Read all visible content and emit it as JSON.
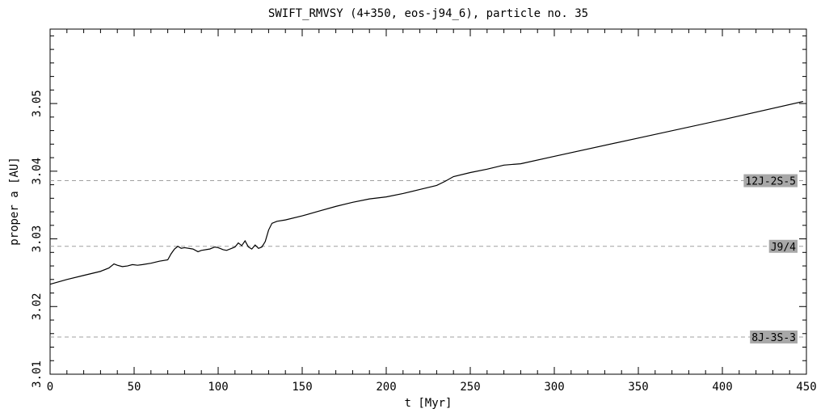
{
  "chart_data": {
    "type": "line",
    "title": "SWIFT_RMVSY (4+350, eos-j94_6), particle no. 35",
    "xlabel": "t [Myr]",
    "ylabel": "proper a [AU]",
    "xlim": [
      0,
      450
    ],
    "ylim": [
      3.01,
      3.061
    ],
    "x_ticks": [
      0,
      50,
      100,
      150,
      200,
      250,
      300,
      350,
      400,
      450
    ],
    "x_tick_labels": [
      "0",
      "50",
      "100",
      "150",
      "200",
      "250",
      "300",
      "350",
      "400",
      "450"
    ],
    "y_ticks": [
      3.01,
      3.02,
      3.03,
      3.04,
      3.05
    ],
    "y_tick_labels": [
      "3.01",
      "3.02",
      "3.03",
      "3.04",
      "3.05"
    ],
    "grid": false,
    "line_color": "#000000",
    "resonance_color": "#a0a0a0",
    "label_bg_color": "#a8a8a8",
    "resonances": [
      {
        "label": "12J-2S-5",
        "a": 3.0386
      },
      {
        "label": "J9/4",
        "a": 3.0289
      },
      {
        "label": "8J-3S-3",
        "a": 3.0155
      }
    ],
    "series": [
      {
        "x": [
          0,
          10,
          20,
          30,
          35,
          38,
          40,
          43,
          46,
          49,
          52,
          55,
          60,
          65,
          70,
          72,
          74,
          76,
          78,
          80,
          85,
          88,
          90,
          95,
          98,
          100,
          103,
          105,
          108,
          110,
          112,
          114,
          116,
          118,
          120,
          122,
          124,
          126,
          128,
          130,
          132,
          135,
          140,
          150,
          160,
          170,
          180,
          190,
          200,
          210,
          220,
          230,
          235,
          240,
          250,
          260,
          270,
          275,
          280,
          300,
          350,
          400,
          448
        ],
        "y": [
          3.0233,
          3.024,
          3.0246,
          3.0252,
          3.0257,
          3.0263,
          3.0261,
          3.0259,
          3.026,
          3.0262,
          3.0261,
          3.0262,
          3.0264,
          3.0267,
          3.0269,
          3.0278,
          3.0285,
          3.0289,
          3.0286,
          3.0287,
          3.0285,
          3.0281,
          3.0283,
          3.0285,
          3.0288,
          3.0287,
          3.0284,
          3.0283,
          3.0286,
          3.0288,
          3.0294,
          3.029,
          3.0297,
          3.0288,
          3.0285,
          3.0291,
          3.0286,
          3.0288,
          3.0296,
          3.0313,
          3.0323,
          3.0326,
          3.0328,
          3.0334,
          3.0341,
          3.0348,
          3.0354,
          3.0359,
          3.0362,
          3.0367,
          3.0373,
          3.0379,
          3.0385,
          3.0392,
          3.0398,
          3.0403,
          3.0409,
          3.041,
          3.0411,
          3.0422,
          3.0449,
          3.0476,
          3.0503
        ]
      }
    ]
  }
}
